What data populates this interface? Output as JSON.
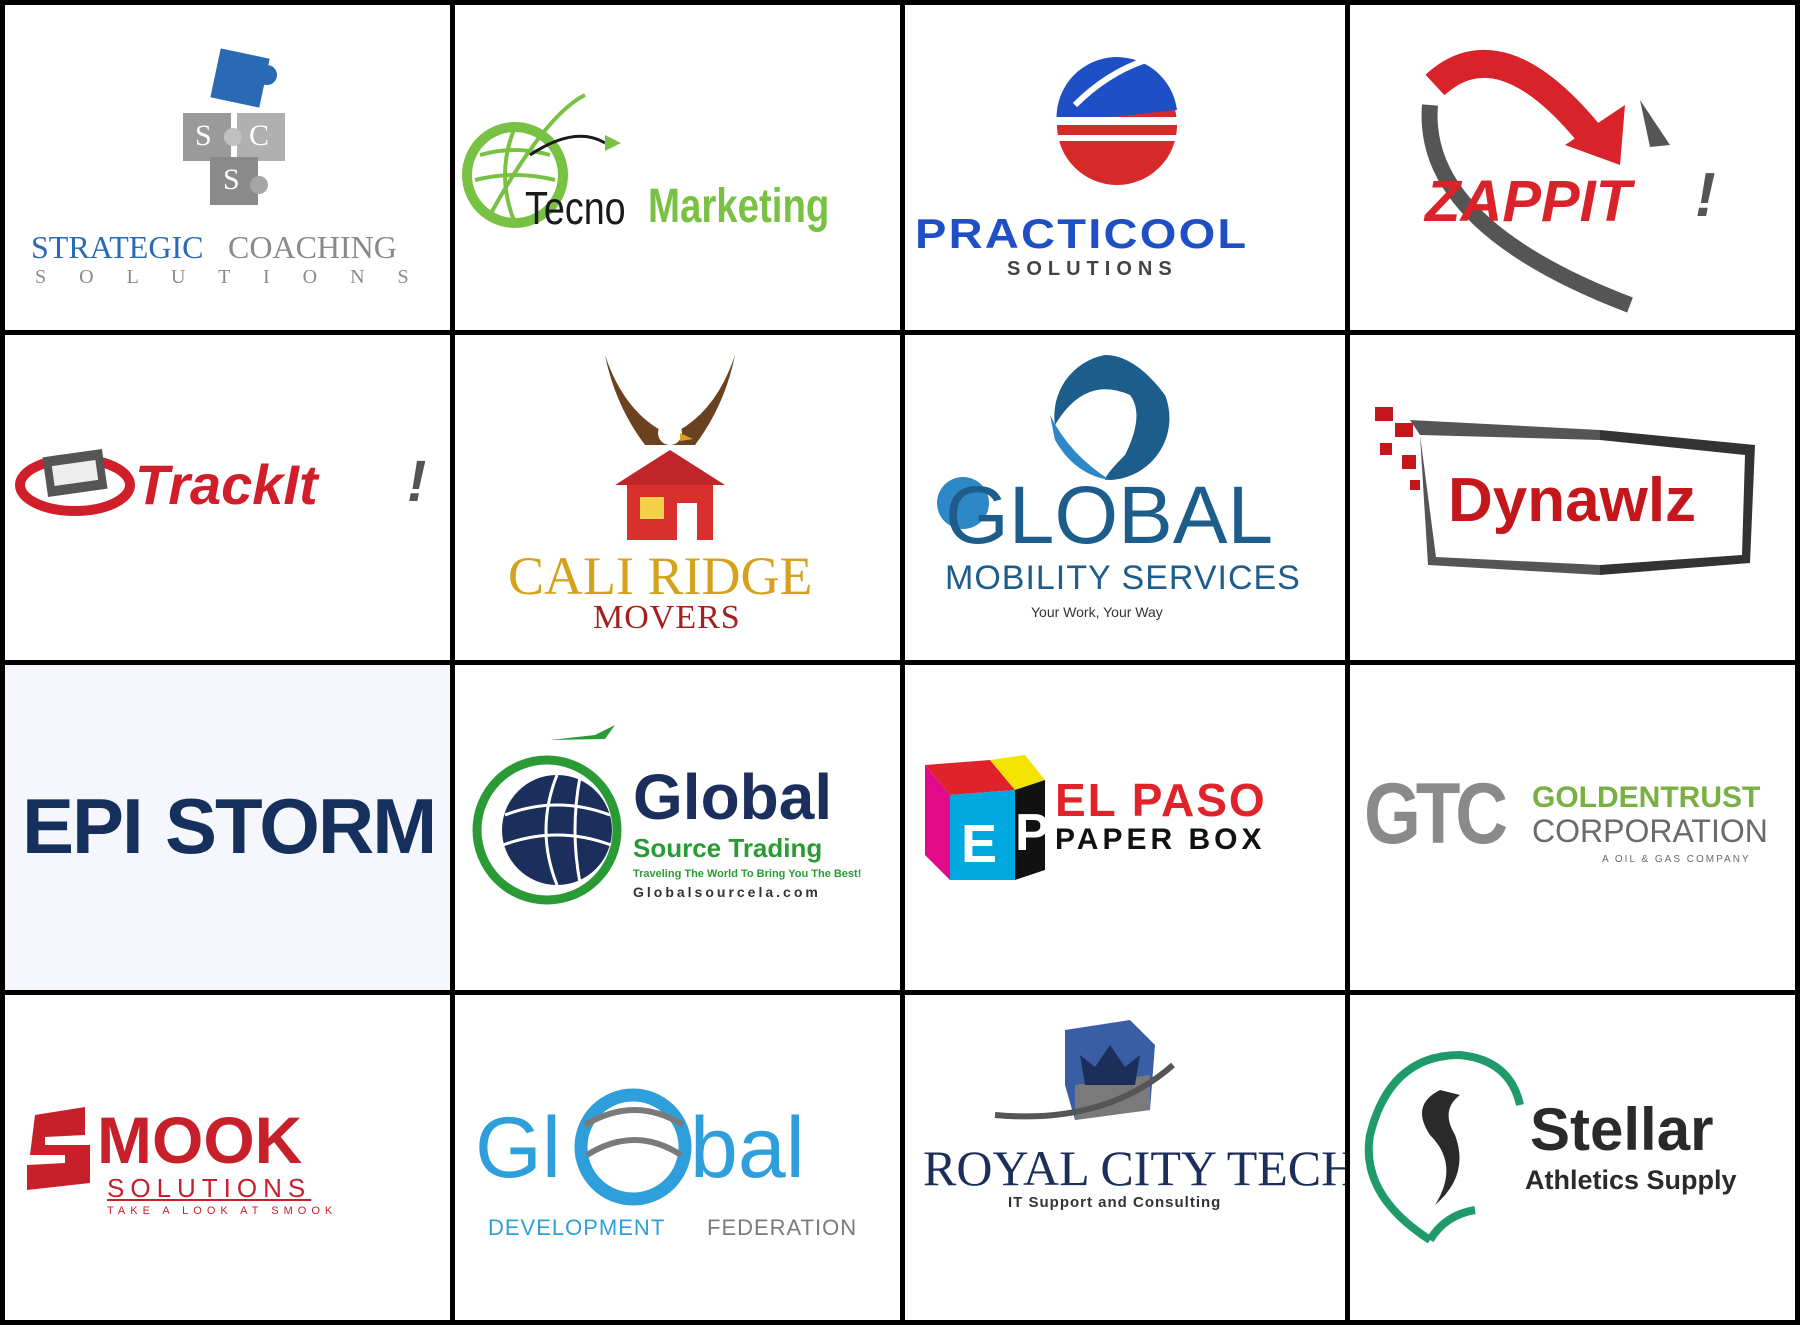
{
  "logos": [
    {
      "id": "strategic",
      "line1a": "STRATEGIC",
      "line1b": "COACHING",
      "line2": "S O L U T I O N S",
      "monogram": [
        "S",
        "C",
        "S"
      ]
    },
    {
      "id": "tecno",
      "part1": "Tecno",
      "part2": "Marketing"
    },
    {
      "id": "practicool",
      "line1": "PRACTICOOL",
      "line2": "SOLUTIONS"
    },
    {
      "id": "zappit",
      "name": "ZAPPIT",
      "mark": "!"
    },
    {
      "id": "trackit",
      "name": "TrackIt",
      "mark": "!"
    },
    {
      "id": "caliridge",
      "line1": "CALI RIDGE",
      "line2": "MOVERS"
    },
    {
      "id": "globalmobility",
      "line1": "GLOBAL",
      "line2": "MOBILITY SERVICES",
      "tagline": "Your Work, Your Way"
    },
    {
      "id": "dynawlz",
      "name": "Dynawlz"
    },
    {
      "id": "epistorm",
      "part1": "EPI",
      "part2": "STORM"
    },
    {
      "id": "globalsource",
      "line1": "Global",
      "line2": "Source Trading",
      "tagline": "Traveling The World To Bring You The Best!",
      "url": "Globalsourcela.com"
    },
    {
      "id": "elpaso",
      "line1": "EL PASO",
      "line2": "PAPER BOX",
      "mono1": "E",
      "mono2": "P"
    },
    {
      "id": "goldentrust",
      "mono": "GTC",
      "line1": "GOLDENTRUST",
      "line2": "CORPORATION",
      "tagline": "A OIL & GAS COMPANY"
    },
    {
      "id": "smook",
      "name": "MOOK",
      "line2": "SOLUTIONS",
      "tagline": "TAKE A LOOK AT SMOOK"
    },
    {
      "id": "globaldev",
      "part1": "Gl",
      "part2": "bal",
      "line2a": "DEVELOPMENT",
      "line2b": "FEDERATION"
    },
    {
      "id": "royalcity",
      "line1": "ROYAL CITY TECH",
      "tagline": "IT Support and Consulting"
    },
    {
      "id": "stellar",
      "line1": "Stellar",
      "line2": "Athletics Supply"
    }
  ],
  "colors": {
    "frame": "#000000",
    "cell_bg": "#ffffff",
    "strategic_blue": "#2a6ab5",
    "strategic_gray": "#8a8a8a",
    "tecno_green": "#79c143",
    "tecno_black": "#1a1a1a",
    "practicool_blue": "#1f4fc4",
    "practicool_red": "#d62a2a",
    "zappit_red": "#d9232a",
    "zappit_gray": "#555555",
    "trackit_red": "#d01f2a",
    "caliridge_gold": "#d4a21c",
    "caliridge_red": "#a51f1f",
    "globalmobility_blue": "#1c5d8c",
    "dynawlz_red": "#c3171c",
    "epistorm_navy": "#16305e",
    "globalsource_navy": "#1c2f5c",
    "globalsource_green": "#2a9a35",
    "elpaso_red": "#e0222a",
    "goldentrust_green": "#78b043",
    "goldentrust_gray": "#6a6a6a",
    "smook_red": "#c8202b",
    "globaldev_blue": "#2e9fda",
    "globaldev_gray": "#7a7a7a",
    "royal_navy": "#1b2f5a",
    "stellar_green": "#1f9a6a",
    "stellar_dark": "#2a2a2a"
  }
}
